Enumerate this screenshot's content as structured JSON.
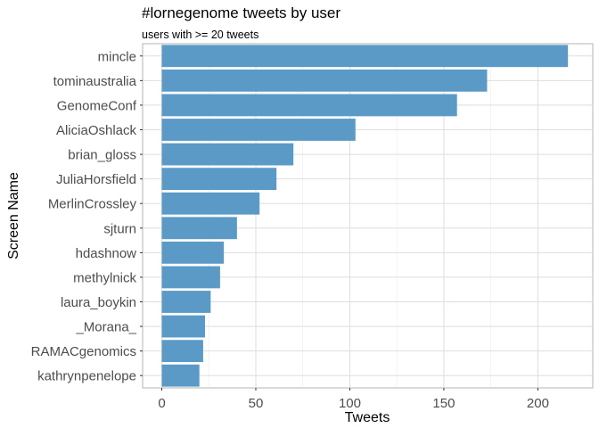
{
  "chart_data": {
    "type": "bar",
    "orientation": "horizontal",
    "title": "#lornegenome tweets by user",
    "subtitle": "users with >= 20 tweets",
    "xlabel": "Tweets",
    "ylabel": "Screen Name",
    "xlim": [
      0,
      229
    ],
    "xticks": [
      0,
      50,
      100,
      150,
      200
    ],
    "grid": true,
    "bar_color": "#5b9ac6",
    "categories": [
      "mincle",
      "tominaustralia",
      "GenomeConf",
      "AliciaOshlack",
      "brian_gloss",
      "JuliaHorsfield",
      "MerlinCrossley",
      "sjturn",
      "hdashnow",
      "methylnick",
      "laura_boykin",
      "_Morana_",
      "RAMACgenomics",
      "kathrynpenelope"
    ],
    "values": [
      216,
      173,
      157,
      103,
      70,
      61,
      52,
      40,
      33,
      31,
      26,
      23,
      22,
      20
    ]
  }
}
